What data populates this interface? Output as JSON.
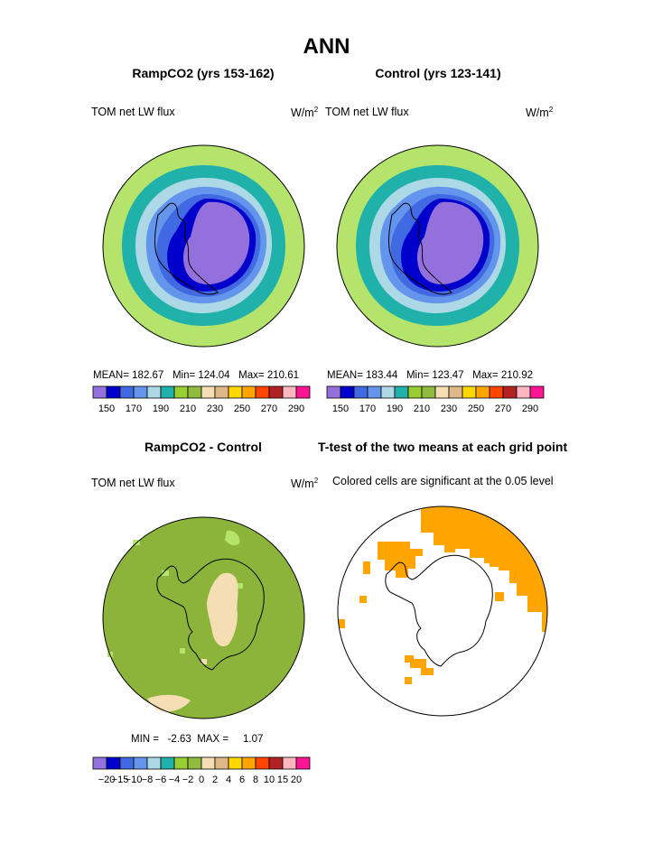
{
  "title": "ANN",
  "panels": [
    {
      "id": "rampco2",
      "subtitle": "RampCO2 (yrs 153-162)",
      "variable": "TOM net LW flux",
      "units": "W/m",
      "units_sup": "2",
      "stats": {
        "mean_label": "MEAN=",
        "mean": "182.67",
        "min_label": "Min=",
        "min": "124.04",
        "max_label": "Max=",
        "max": "210.61"
      }
    },
    {
      "id": "control",
      "subtitle": "Control (yrs 123-141)",
      "variable": "TOM net LW flux",
      "units": "W/m",
      "units_sup": "2",
      "stats": {
        "mean_label": "MEAN=",
        "mean": "183.44",
        "min_label": "Min=",
        "min": "123.47",
        "max_label": "Max=",
        "max": "210.92"
      }
    },
    {
      "id": "difference",
      "subtitle": "RampCO2 - Control",
      "variable": "TOM net LW flux",
      "units": "W/m",
      "units_sup": "2",
      "stats": {
        "min_label": "MIN =",
        "min": "-2.63",
        "max_label": "MAX =",
        "max": "1.07"
      }
    },
    {
      "id": "ttest",
      "subtitle": "T-test of the two means at each grid point",
      "note": "Colored cells are significant at the 0.05 level"
    }
  ],
  "colorbar_main": {
    "colors": [
      "#9370db",
      "#0000cd",
      "#4169e1",
      "#6495ed",
      "#add8e6",
      "#20b2aa",
      "#9acd32",
      "#8fbc3f",
      "#f5deb3",
      "#deb887",
      "#ffd700",
      "#ffa500",
      "#ff4500",
      "#b22222",
      "#ffb6c1",
      "#ff1493"
    ],
    "labels": [
      "150",
      "170",
      "190",
      "210",
      "230",
      "250",
      "270",
      "290"
    ]
  },
  "colorbar_diff": {
    "colors": [
      "#9370db",
      "#0000cd",
      "#4169e1",
      "#6495ed",
      "#add8e6",
      "#20b2aa",
      "#9acd32",
      "#8fbc3f",
      "#f5deb3",
      "#deb887",
      "#ffd700",
      "#ffa500",
      "#ff4500",
      "#b22222",
      "#ffb6c1",
      "#ff1493"
    ],
    "labels": [
      "−20",
      "−15",
      "−10",
      "−8",
      "−6",
      "−4",
      "−2",
      "0",
      "2",
      "4",
      "6",
      "8",
      "10",
      "15",
      "20"
    ]
  },
  "map_colors": {
    "outer_ring": "#b4e46c",
    "mid_ring": "#20b2aa",
    "inner_ring": "#add8e6",
    "cornflower": "#6495ed",
    "royal": "#4169e1",
    "navy": "#0000cd",
    "core": "#9370db",
    "diff_background": "#8db43a",
    "diff_light": "#b4e46c",
    "diff_wheat": "#f5deb3",
    "significant": "#ffa500"
  }
}
